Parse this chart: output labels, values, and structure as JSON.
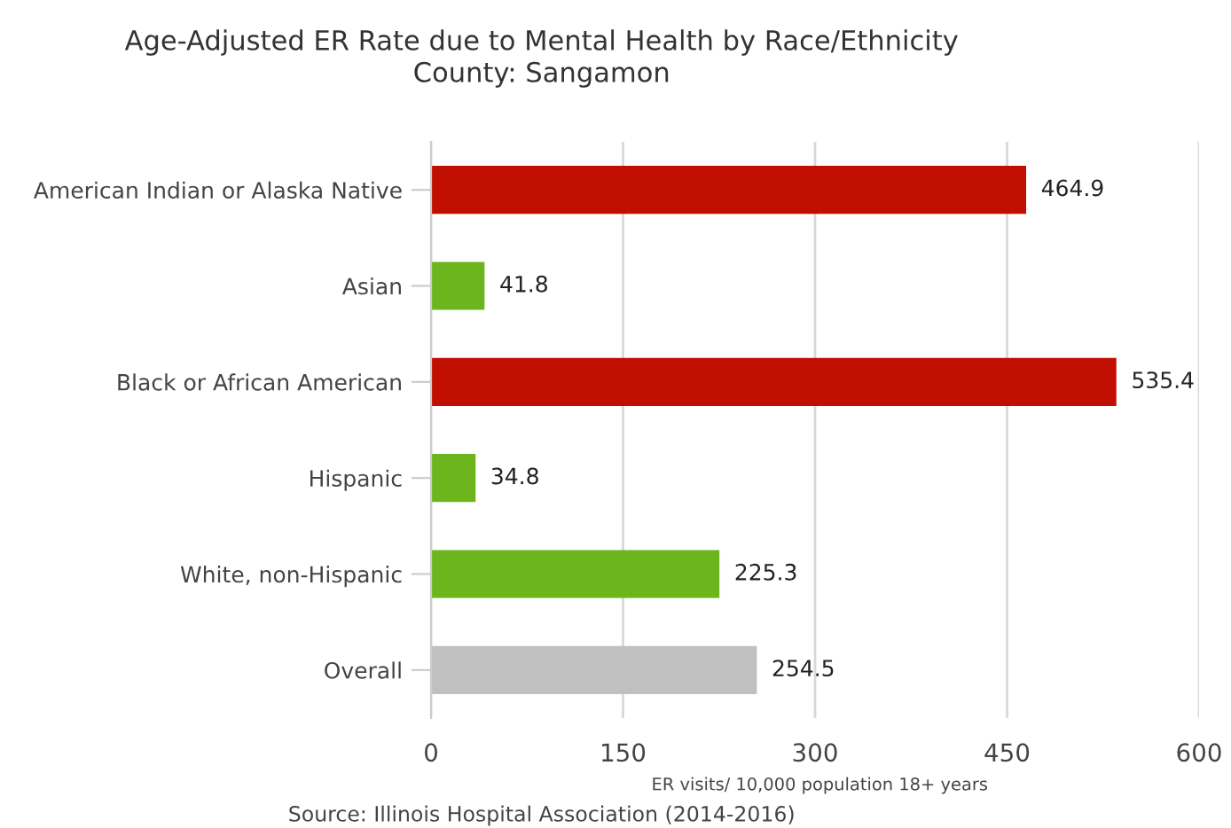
{
  "chart_data": {
    "type": "bar",
    "orientation": "horizontal",
    "title": "Age-Adjusted ER Rate due to Mental Health by Race/Ethnicity",
    "subtitle": "County: Sangamon",
    "categories": [
      "American Indian or Alaska Native",
      "Asian",
      "Black or African American",
      "Hispanic",
      "White, non-Hispanic",
      "Overall"
    ],
    "values": [
      464.9,
      41.8,
      535.4,
      34.8,
      225.3,
      254.5
    ],
    "colors": [
      "#c00f00",
      "#6db51c",
      "#c00f00",
      "#6db51c",
      "#6db51c",
      "#c0c0c0"
    ],
    "data_labels": true,
    "xlim": [
      0,
      600
    ],
    "xticks": [
      0,
      150,
      300,
      450,
      600
    ],
    "grid": "x",
    "xlabel": "ER visits/ 10,000 population 18+ years",
    "annotations": [
      "Source: Illinois Hospital Association (2014-2016)"
    ]
  }
}
